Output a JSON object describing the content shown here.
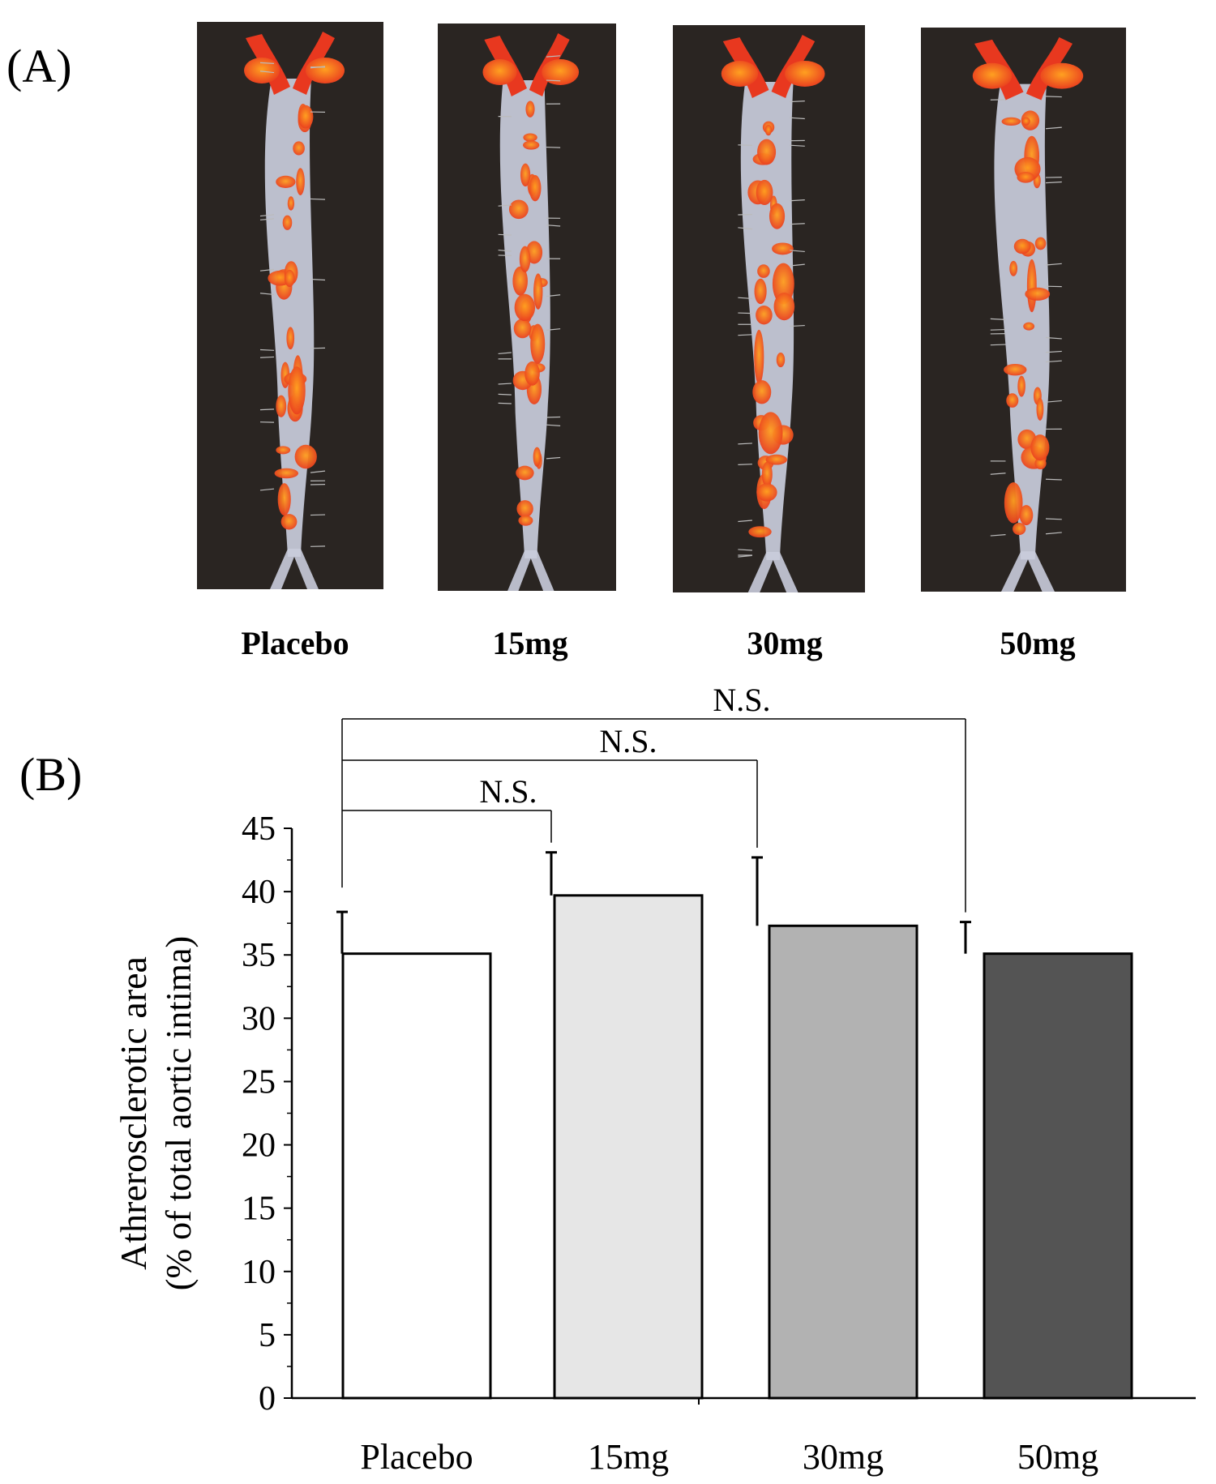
{
  "panels": {
    "a": "(A)",
    "b": "(B)"
  },
  "photos": {
    "background_color": "#2a2522",
    "tissue_color": "#c9ccdc",
    "plaque_color": "#e8381f",
    "plaque_highlight": "#ffa020",
    "items": [
      {
        "caption": "Placebo"
      },
      {
        "caption": "15mg"
      },
      {
        "caption": "30mg"
      },
      {
        "caption": "50mg"
      }
    ]
  },
  "chart_data": {
    "type": "bar",
    "categories": [
      "Placebo",
      "15mg",
      "30mg",
      "50mg"
    ],
    "values": [
      35.1,
      39.7,
      37.3,
      35.1
    ],
    "errors": [
      3.3,
      3.4,
      5.4,
      2.5
    ],
    "colors": [
      "#ffffff",
      "#e6e6e6",
      "#b2b2b2",
      "#545454"
    ],
    "ylabel": "Athrerosclerotic area",
    "ylabel2": "(% of total aortic intima)",
    "ylim": [
      0,
      45
    ],
    "yticks": [
      0,
      5,
      10,
      15,
      20,
      25,
      30,
      35,
      40,
      45
    ],
    "comparisons": [
      {
        "from": 0,
        "to": 1,
        "label": "N.S."
      },
      {
        "from": 0,
        "to": 2,
        "label": "N.S."
      },
      {
        "from": 0,
        "to": 3,
        "label": "N.S."
      }
    ],
    "grid": false
  }
}
